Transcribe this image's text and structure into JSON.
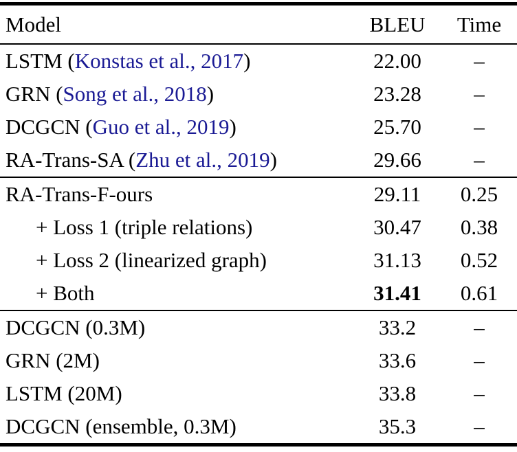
{
  "table": {
    "header": {
      "model": "Model",
      "bleu": "BLEU",
      "time": "Time"
    },
    "citation_color": "#1a1a94",
    "sections": [
      {
        "rows": [
          {
            "model_prefix": "LSTM (",
            "citation": "Konstas et al., 2017",
            "model_suffix": ")",
            "bleu": "22.00",
            "time": "–",
            "indent": false,
            "bleu_bold": false
          },
          {
            "model_prefix": "GRN (",
            "citation": "Song et al., 2018",
            "model_suffix": ")",
            "bleu": "23.28",
            "time": "–",
            "indent": false,
            "bleu_bold": false
          },
          {
            "model_prefix": "DCGCN (",
            "citation": "Guo et al., 2019",
            "model_suffix": ")",
            "bleu": "25.70",
            "time": "–",
            "indent": false,
            "bleu_bold": false
          },
          {
            "model_prefix": "RA-Trans-SA (",
            "citation": "Zhu et al., 2019",
            "model_suffix": ")",
            "bleu": "29.66",
            "time": "–",
            "indent": false,
            "bleu_bold": false
          }
        ]
      },
      {
        "rows": [
          {
            "model_prefix": "RA-Trans-F-ours",
            "citation": null,
            "model_suffix": "",
            "bleu": "29.11",
            "time": "0.25",
            "indent": false,
            "bleu_bold": false
          },
          {
            "model_prefix": "+ Loss 1 (triple relations)",
            "citation": null,
            "model_suffix": "",
            "bleu": "30.47",
            "time": "0.38",
            "indent": true,
            "bleu_bold": false
          },
          {
            "model_prefix": "+ Loss 2 (linearized graph)",
            "citation": null,
            "model_suffix": "",
            "bleu": "31.13",
            "time": "0.52",
            "indent": true,
            "bleu_bold": false
          },
          {
            "model_prefix": "+ Both",
            "citation": null,
            "model_suffix": "",
            "bleu": "31.41",
            "time": "0.61",
            "indent": true,
            "bleu_bold": true
          }
        ]
      },
      {
        "rows": [
          {
            "model_prefix": "DCGCN (0.3M)",
            "citation": null,
            "model_suffix": "",
            "bleu": "33.2",
            "time": "–",
            "indent": false,
            "bleu_bold": false
          },
          {
            "model_prefix": "GRN (2M)",
            "citation": null,
            "model_suffix": "",
            "bleu": "33.6",
            "time": "–",
            "indent": false,
            "bleu_bold": false
          },
          {
            "model_prefix": "LSTM (20M)",
            "citation": null,
            "model_suffix": "",
            "bleu": "33.8",
            "time": "–",
            "indent": false,
            "bleu_bold": false
          },
          {
            "model_prefix": "DCGCN (ensemble, 0.3M)",
            "citation": null,
            "model_suffix": "",
            "bleu": "35.3",
            "time": "–",
            "indent": false,
            "bleu_bold": false
          }
        ]
      }
    ]
  }
}
